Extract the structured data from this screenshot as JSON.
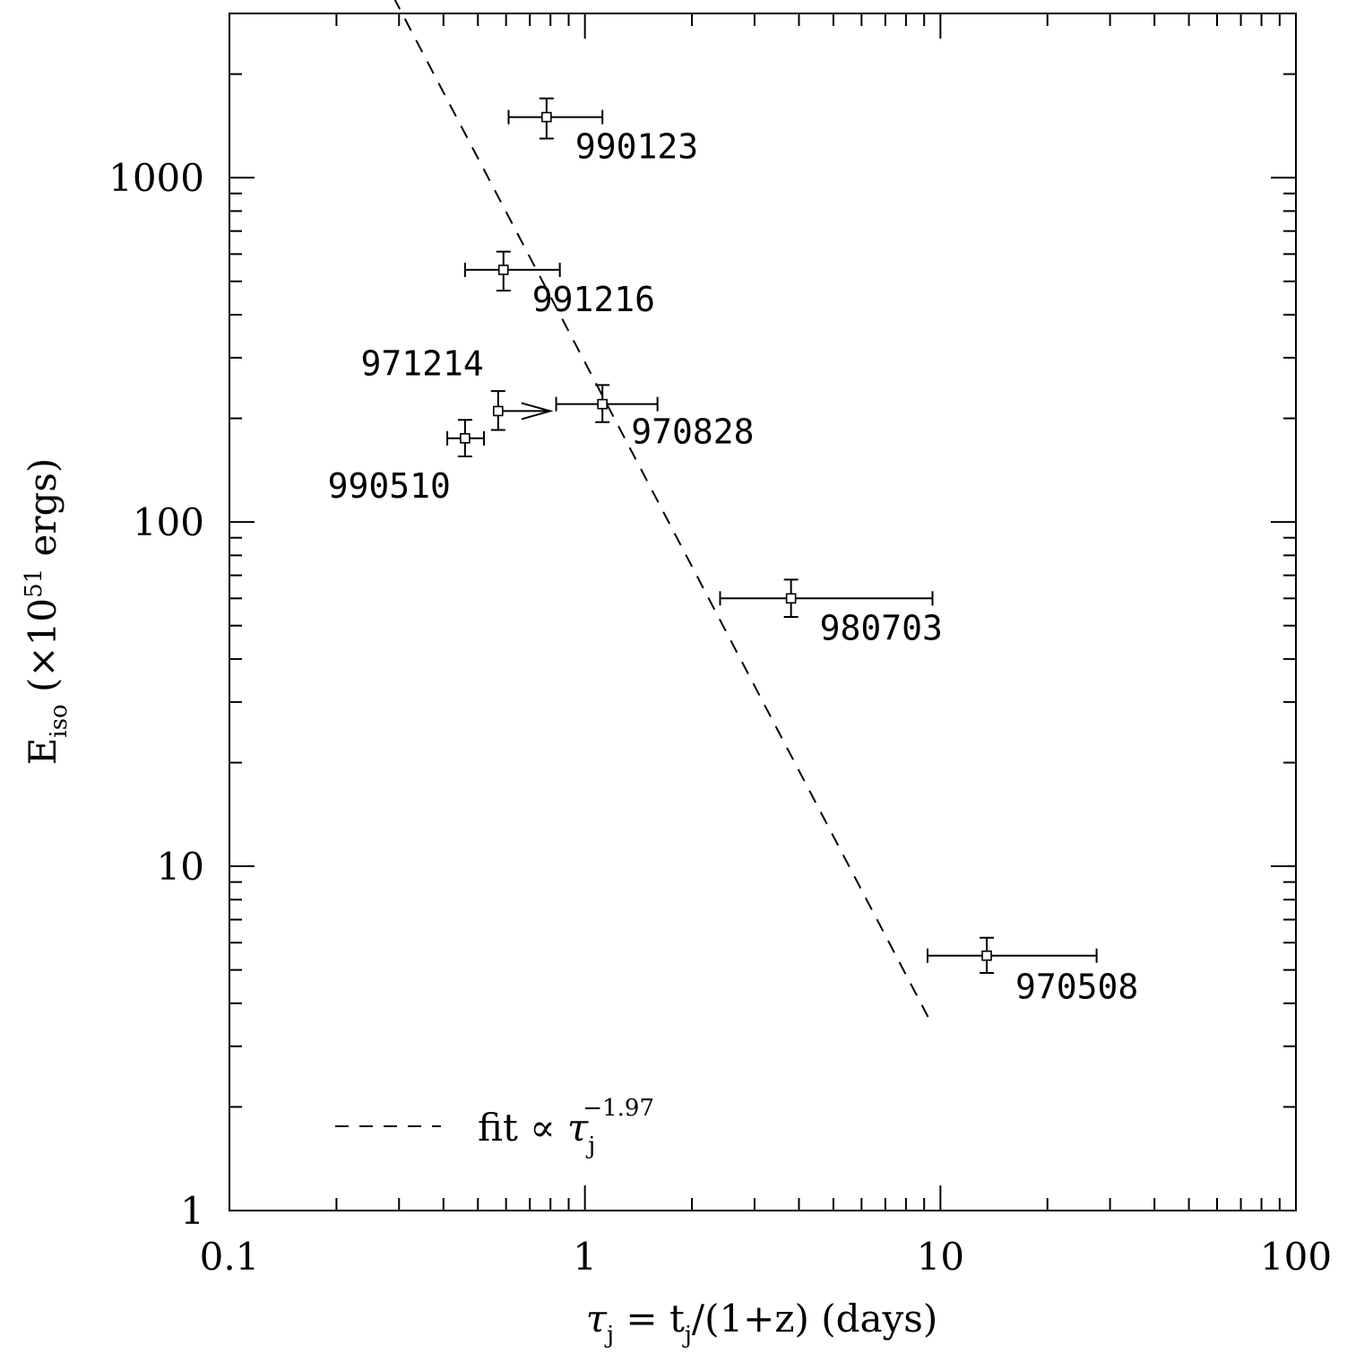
{
  "chart_data": {
    "type": "scatter",
    "x_scale": "log",
    "y_scale": "log",
    "xlim": [
      0.1,
      100
    ],
    "ylim": [
      1,
      3000
    ],
    "x_ticks": [
      {
        "value": 0.1,
        "label": "0.1"
      },
      {
        "value": 1,
        "label": "1"
      },
      {
        "value": 10,
        "label": "10"
      },
      {
        "value": 100,
        "label": "100"
      }
    ],
    "y_ticks": [
      {
        "value": 1,
        "label": "1"
      },
      {
        "value": 10,
        "label": "10"
      },
      {
        "value": 100,
        "label": "100"
      },
      {
        "value": 1000,
        "label": "1000"
      }
    ],
    "xlabel": {
      "tau": "τ",
      "sub": "j",
      "rest": " = t",
      "sub2": "j",
      "tail": "/(1+z) (days)"
    },
    "ylabel": {
      "main": "E",
      "sub": "iso",
      "rest": " (×10",
      "sup": "51",
      "tail": " ergs)"
    },
    "points": [
      {
        "name": "990123",
        "x": 0.78,
        "y": 1500,
        "x_err": [
          0.61,
          1.12
        ],
        "y_err": [
          1300,
          1700
        ],
        "limit": false
      },
      {
        "name": "991216",
        "x": 0.59,
        "y": 540,
        "x_err": [
          0.46,
          0.85
        ],
        "y_err": [
          470,
          610
        ],
        "limit": false
      },
      {
        "name": "971214",
        "x": 0.57,
        "y": 210,
        "x_err": null,
        "y_err": [
          185,
          240
        ],
        "limit": true
      },
      {
        "name": "970828",
        "x": 1.12,
        "y": 220,
        "x_err": [
          0.83,
          1.6
        ],
        "y_err": [
          195,
          250
        ],
        "limit": false
      },
      {
        "name": "990510",
        "x": 0.46,
        "y": 175,
        "x_err": [
          0.41,
          0.52
        ],
        "y_err": [
          155,
          198
        ],
        "limit": false
      },
      {
        "name": "980703",
        "x": 3.8,
        "y": 60,
        "x_err": [
          2.4,
          9.5
        ],
        "y_err": [
          53,
          68
        ],
        "limit": false
      },
      {
        "name": "970508",
        "x": 13.5,
        "y": 5.5,
        "x_err": [
          9.2,
          27.5
        ],
        "y_err": [
          4.9,
          6.2
        ],
        "limit": false
      }
    ],
    "fit": {
      "exponent": -1.97,
      "x_range": [
        0.174,
        9.45
      ],
      "y_at_x1": 291,
      "legend": {
        "text": "fit ∝ ",
        "tau": "τ",
        "sub": "j",
        "sup": "−1.97"
      },
      "legend_placement": "bottom-left"
    },
    "grid": false
  }
}
